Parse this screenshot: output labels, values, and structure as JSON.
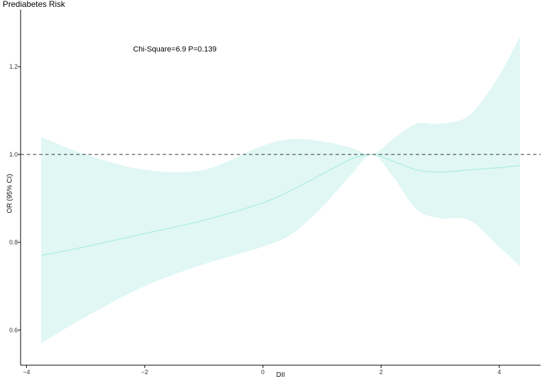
{
  "chart_data": {
    "type": "line",
    "title": "Prediabetes Risk",
    "xlabel": "DII",
    "ylabel": "OR (95% CI)",
    "annotation": "Chi-Square=6.9  P=0.139",
    "xlim": [
      -4.1,
      4.7
    ],
    "ylim": [
      0.52,
      1.33
    ],
    "x_ticks": [
      -4,
      -2,
      0,
      2,
      4
    ],
    "y_ticks": [
      0.6,
      0.8,
      1.0,
      1.2
    ],
    "x_tick_labels": [
      "−4",
      "−2",
      "0",
      "2",
      "4"
    ],
    "y_tick_labels": [
      "0.6",
      "0.8",
      "1.0",
      "1.2"
    ],
    "reference_line": {
      "y": 1.0,
      "style": "dashed"
    },
    "grid": false,
    "colors": {
      "line": "#a8ece2",
      "band": "#e0f7f4",
      "reference": "#333333",
      "axis": "#000000"
    },
    "series": [
      {
        "x": [
          -3.75,
          -3.0,
          -2.0,
          -1.0,
          0.0,
          0.5,
          1.0,
          1.5,
          1.85,
          2.2,
          2.6,
          3.0,
          3.5,
          4.0,
          4.35
        ],
        "y": [
          0.77,
          0.79,
          0.82,
          0.85,
          0.89,
          0.92,
          0.955,
          0.99,
          1.0,
          0.985,
          0.965,
          0.96,
          0.965,
          0.97,
          0.975
        ],
        "lower": [
          0.57,
          0.63,
          0.7,
          0.75,
          0.79,
          0.82,
          0.88,
          0.955,
          1.0,
          0.95,
          0.875,
          0.855,
          0.85,
          0.79,
          0.745
        ],
        "upper": [
          1.04,
          1.0,
          0.965,
          0.965,
          1.02,
          1.035,
          1.03,
          1.015,
          1.0,
          1.035,
          1.07,
          1.07,
          1.09,
          1.18,
          1.27
        ]
      }
    ]
  }
}
